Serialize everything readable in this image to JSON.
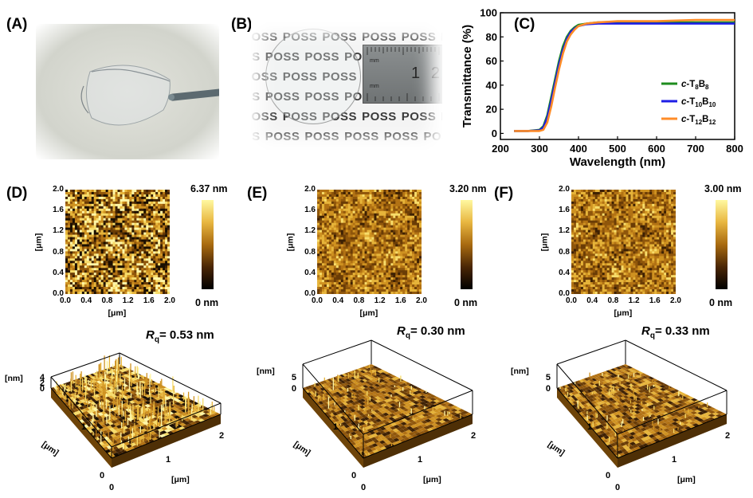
{
  "panels": {
    "A": {
      "label": "(A)"
    },
    "B": {
      "label": "(B)",
      "word": "POSS",
      "ruler": {
        "n1": "1",
        "n2": "2",
        "u1": "mm",
        "u2": "mm"
      }
    },
    "C": {
      "label": "(C)"
    },
    "D": {
      "label": "(D)",
      "scale_max": "6.37 nm",
      "scale_min": "0 nm",
      "rq_symbol": "R",
      "rq_sub": "q",
      "rq_value": "= 0.53 nm"
    },
    "E": {
      "label": "(E)",
      "scale_max": "3.20 nm",
      "scale_min": "0 nm",
      "rq_symbol": "R",
      "rq_sub": "q",
      "rq_value": "= 0.30 nm"
    },
    "F": {
      "label": "(F)",
      "scale_max": "3.00 nm",
      "scale_min": "0 nm",
      "rq_symbol": "R",
      "rq_sub": "q",
      "rq_value": "= 0.33 nm"
    }
  },
  "afm_axes": {
    "ticks": [
      "0.0",
      "0.4",
      "0.8",
      "1.2",
      "1.6",
      "2.0"
    ],
    "unit": "[μm]"
  },
  "surface3d": {
    "D": {
      "z_ticks": [
        "4",
        "2",
        "0"
      ],
      "z_unit": "[nm]",
      "y_ticks": [
        "1",
        "0"
      ],
      "x_ticks": [
        "0",
        "1",
        "2"
      ],
      "y_unit": "[μm]",
      "x_unit": "[μm]"
    },
    "E": {
      "z_ticks": [
        "5",
        "0"
      ],
      "z_unit": "[nm]",
      "y_ticks": [
        "1",
        "0"
      ],
      "x_ticks": [
        "0",
        "1",
        "2"
      ],
      "y_unit": "[μm]",
      "x_unit": "[μm]"
    },
    "F": {
      "z_ticks": [
        "5",
        "0"
      ],
      "z_unit": "[nm]",
      "y_ticks": [
        "1",
        "0"
      ],
      "x_ticks": [
        "0",
        "1",
        "2"
      ],
      "y_unit": "[μm]",
      "x_unit": "[μm]"
    }
  },
  "colors": {
    "c-T8B8": "#1e8c1e",
    "c-T10B10": "#1e1ee6",
    "c-T12B12": "#ff8c28",
    "afm_dark": "#1a0e00",
    "afm_mid": "#a86a10",
    "afm_light": "#fff8a0"
  },
  "chart_data": {
    "type": "line",
    "title": "",
    "xlabel": "Wavelength (nm)",
    "ylabel": "Transmittance (%)",
    "xlim": [
      200,
      800
    ],
    "ylim": [
      -5,
      100
    ],
    "xticks": [
      200,
      300,
      400,
      500,
      600,
      700,
      800
    ],
    "yticks": [
      0,
      20,
      40,
      60,
      80,
      100
    ],
    "legend_position": "center-right",
    "series": [
      {
        "name": "c-T8B8",
        "label_prefix": "c",
        "label_main": "-T",
        "sub1": "8",
        "label_mid": "B",
        "sub2": "8",
        "x": [
          235,
          270,
          300,
          310,
          320,
          330,
          340,
          350,
          360,
          370,
          380,
          390,
          400,
          420,
          450,
          500,
          600,
          700,
          800
        ],
        "y": [
          2,
          2,
          3,
          6,
          15,
          30,
          45,
          60,
          72,
          80,
          85,
          88,
          90,
          91,
          92,
          92,
          92,
          92,
          92
        ]
      },
      {
        "name": "c-T10B10",
        "label_prefix": "c",
        "label_main": "-T",
        "sub1": "10",
        "label_mid": "B",
        "sub2": "10",
        "x": [
          235,
          270,
          300,
          310,
          320,
          330,
          340,
          350,
          360,
          370,
          380,
          390,
          400,
          420,
          450,
          500,
          600,
          700,
          800
        ],
        "y": [
          2,
          2,
          2.5,
          5,
          13,
          27,
          42,
          57,
          69,
          78,
          84,
          87,
          89,
          90.5,
          91,
          91,
          91,
          91,
          91
        ]
      },
      {
        "name": "c-T12B12",
        "label_prefix": "c",
        "label_main": "-T",
        "sub1": "12",
        "label_mid": "B",
        "sub2": "12",
        "x": [
          235,
          270,
          300,
          310,
          320,
          330,
          340,
          350,
          360,
          370,
          380,
          390,
          400,
          420,
          450,
          500,
          600,
          700,
          800
        ],
        "y": [
          2,
          2,
          2,
          3,
          9,
          22,
          38,
          53,
          66,
          76,
          82,
          86,
          89,
          91,
          92,
          93,
          93,
          94,
          94
        ]
      }
    ]
  }
}
